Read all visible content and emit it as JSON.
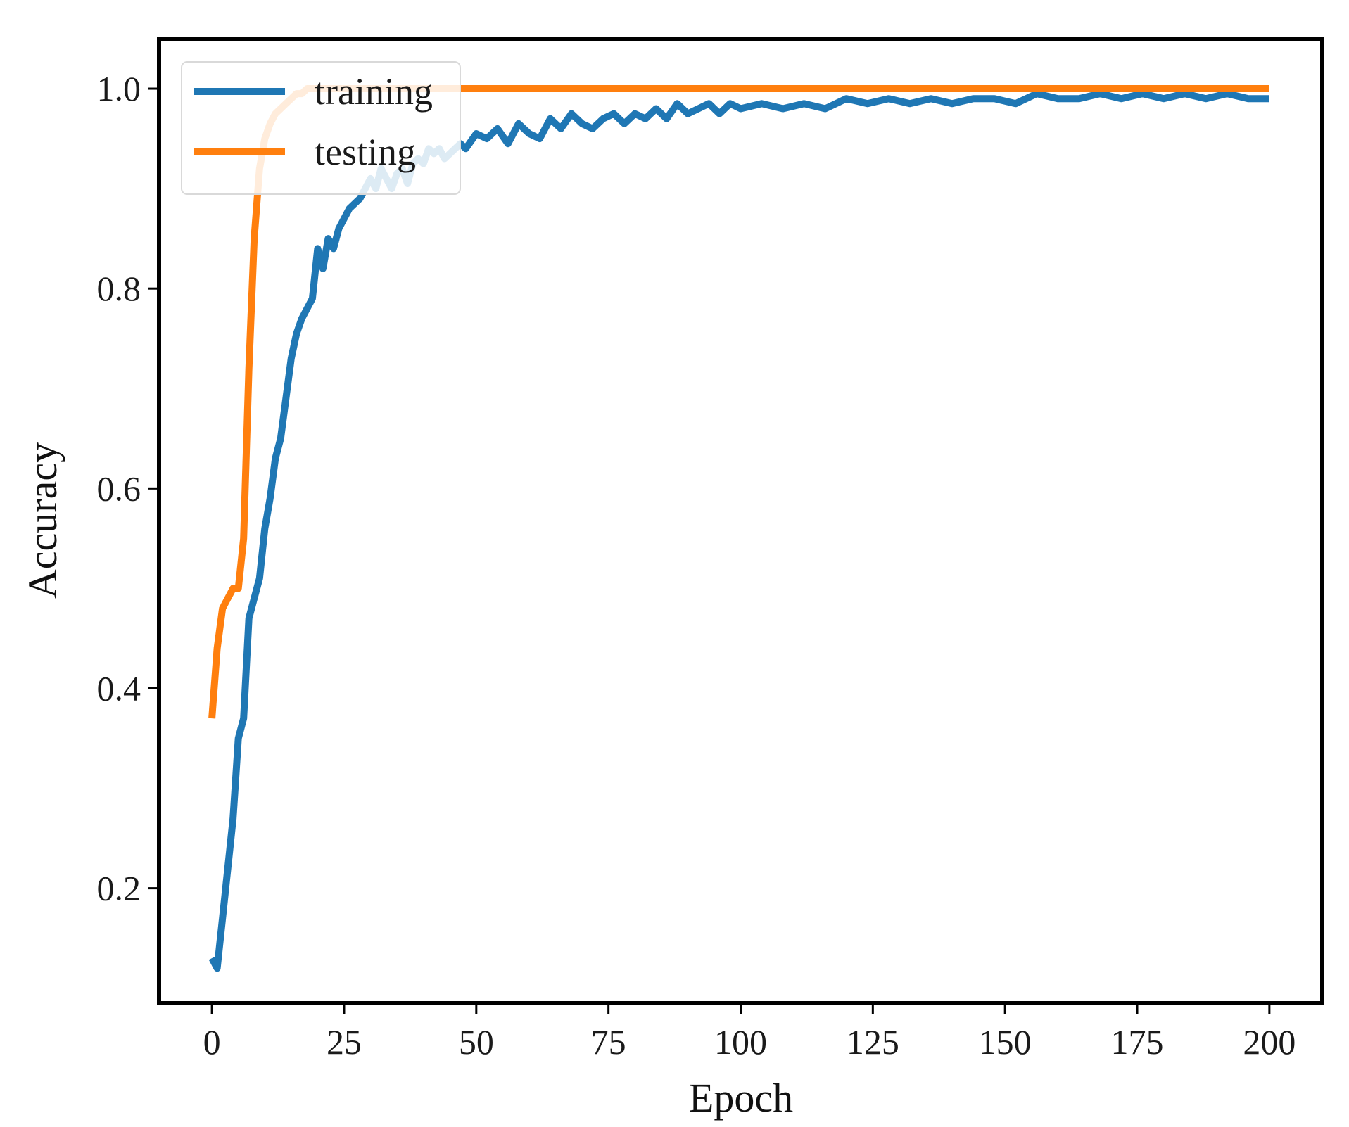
{
  "chart_data": {
    "type": "line",
    "title": "",
    "xlabel": "Epoch",
    "ylabel": "Accuracy",
    "xlim": [
      -10,
      210
    ],
    "ylim": [
      0.085,
      1.05
    ],
    "xticks": [
      0,
      25,
      50,
      75,
      100,
      125,
      150,
      175,
      200
    ],
    "xtick_labels": [
      "0",
      "25",
      "50",
      "75",
      "100",
      "125",
      "150",
      "175",
      "200"
    ],
    "yticks": [
      0.2,
      0.4,
      0.6,
      0.8,
      1.0
    ],
    "ytick_labels": [
      "0.2",
      "0.4",
      "0.6",
      "0.8",
      "1.0"
    ],
    "grid": false,
    "legend_position": "top-left",
    "series": [
      {
        "name": "training",
        "color": "#1f77b4",
        "x": [
          0,
          1,
          2,
          3,
          4,
          5,
          6,
          7,
          8,
          9,
          10,
          11,
          12,
          13,
          14,
          15,
          16,
          17,
          18,
          19,
          20,
          21,
          22,
          23,
          24,
          25,
          26,
          27,
          28,
          29,
          30,
          31,
          32,
          33,
          34,
          35,
          36,
          37,
          38,
          39,
          40,
          41,
          42,
          43,
          44,
          45,
          46,
          47,
          48,
          50,
          52,
          54,
          56,
          58,
          60,
          62,
          64,
          66,
          68,
          70,
          72,
          74,
          76,
          78,
          80,
          82,
          84,
          86,
          88,
          90,
          92,
          94,
          96,
          98,
          100,
          104,
          108,
          112,
          116,
          120,
          124,
          128,
          132,
          136,
          140,
          144,
          148,
          152,
          156,
          160,
          164,
          168,
          172,
          176,
          180,
          184,
          188,
          192,
          196,
          200
        ],
        "values": [
          0.13,
          0.12,
          0.17,
          0.22,
          0.27,
          0.35,
          0.37,
          0.47,
          0.49,
          0.51,
          0.56,
          0.59,
          0.63,
          0.65,
          0.69,
          0.73,
          0.755,
          0.77,
          0.78,
          0.79,
          0.84,
          0.82,
          0.85,
          0.84,
          0.86,
          0.87,
          0.88,
          0.885,
          0.89,
          0.9,
          0.91,
          0.9,
          0.92,
          0.91,
          0.9,
          0.915,
          0.92,
          0.905,
          0.925,
          0.93,
          0.925,
          0.94,
          0.935,
          0.94,
          0.93,
          0.935,
          0.94,
          0.945,
          0.94,
          0.955,
          0.95,
          0.96,
          0.945,
          0.965,
          0.955,
          0.95,
          0.97,
          0.96,
          0.975,
          0.965,
          0.96,
          0.97,
          0.975,
          0.965,
          0.975,
          0.97,
          0.98,
          0.97,
          0.985,
          0.975,
          0.98,
          0.985,
          0.975,
          0.985,
          0.98,
          0.985,
          0.98,
          0.985,
          0.98,
          0.99,
          0.985,
          0.99,
          0.985,
          0.99,
          0.985,
          0.99,
          0.99,
          0.985,
          0.995,
          0.99,
          0.99,
          0.995,
          0.99,
          0.995,
          0.99,
          0.995,
          0.99,
          0.995,
          0.99,
          0.99
        ]
      },
      {
        "name": "testing",
        "color": "#ff7f0e",
        "x": [
          0,
          1,
          2,
          3,
          4,
          5,
          6,
          7,
          8,
          9,
          10,
          11,
          12,
          13,
          14,
          15,
          16,
          17,
          18,
          19,
          20,
          200
        ],
        "values": [
          0.37,
          0.44,
          0.48,
          0.49,
          0.5,
          0.5,
          0.55,
          0.72,
          0.85,
          0.92,
          0.95,
          0.965,
          0.975,
          0.98,
          0.985,
          0.99,
          0.995,
          0.995,
          1.0,
          1.0,
          1.0,
          1.0
        ]
      }
    ]
  }
}
